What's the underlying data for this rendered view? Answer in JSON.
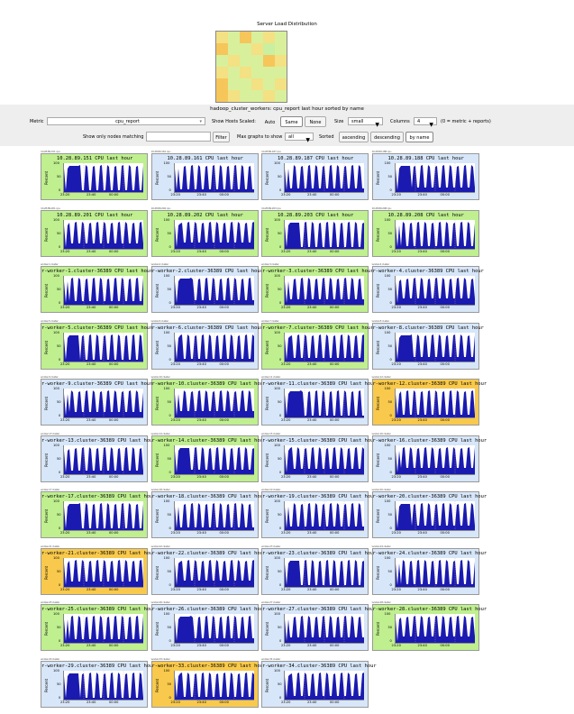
{
  "page": {
    "distribution_title": "Server Load Distribution",
    "heading": "hadoop_cluster_workers: cpu_report last hour sorted by name"
  },
  "colors": {
    "green": "#bfef8f",
    "blue": "#d7e6f8",
    "orange": "#f8c94c",
    "graph_fill": "#1a1ab0"
  },
  "heatmap": [
    "#f3e183",
    "#d8f09c",
    "#f6c65a",
    "#d8f09c",
    "#f3e183",
    "#d8f09c",
    "#f6c65a",
    "#d8f09c",
    "#d8f09c",
    "#f3e183",
    "#c8f0a0",
    "#d8f09c",
    "#d8f09c",
    "#f3e183",
    "#d8f09c",
    "#d8f09c",
    "#f6c65a",
    "#f3e183",
    "#f3e183",
    "#d8f09c",
    "#f3e183",
    "#d8f09c",
    "#d8f09c",
    "#d8f09c",
    "#f6c65a",
    "#d8f09c",
    "#d8f09c",
    "#f3e183",
    "#d8f09c",
    "#f3e183",
    "#f6c65a",
    "#f3e183",
    "#d8f09c",
    "#d8f09c",
    "#f3e183",
    "#d8f09c"
  ],
  "controls": {
    "metric_label": "Metric",
    "metric_value": "cpu_report",
    "show_hosts_label": "Show Hosts Scaled:",
    "scale_auto": "Auto",
    "scale_same": "Same",
    "scale_none": "None",
    "size_label": "Size",
    "size_value": "small",
    "columns_label": "Columns",
    "columns_value": "4",
    "columns_hint": "(0 = metric + reports)",
    "filter_label": "Show only nodes matching",
    "filter_value": "",
    "filter_button": "Filter",
    "max_graphs_label": "Max graphs to show",
    "max_graphs_value": "all",
    "sorted_label": "Sorted",
    "sort_asc": "ascending",
    "sort_desc": "descending",
    "sort_name": "by name"
  },
  "graph_labels": {
    "y_label": "Percent",
    "y_ticks": [
      "100",
      "50",
      "0"
    ],
    "x_ticks": [
      "23:20",
      "23:40",
      "00:00"
    ]
  },
  "nodes": [
    {
      "title": "10.28.89.151 CPU last hour",
      "color": "green",
      "caption": "10.28.89.151 cpu"
    },
    {
      "title": "10.28.89.161 CPU last hour",
      "color": "blue",
      "caption": "10.28.89.161 cpu"
    },
    {
      "title": "10.28.89.187 CPU last hour",
      "color": "blue",
      "caption": "10.28.89.187 cpu"
    },
    {
      "title": "10.28.89.188 CPU last hour",
      "color": "blue",
      "caption": "10.28.89.188 cpu"
    },
    {
      "title": "10.28.89.201 CPU last hour",
      "color": "green",
      "caption": "10.28.89.201 cpu"
    },
    {
      "title": "10.28.89.202 CPU last hour",
      "color": "green",
      "caption": "10.28.89.202 cpu"
    },
    {
      "title": "10.28.89.203 CPU last hour",
      "color": "green",
      "caption": "10.28.89.203 cpu"
    },
    {
      "title": "10.28.89.208 CPU last hour",
      "color": "green",
      "caption": "10.28.89.208 cpu"
    },
    {
      "title": "r-worker-1.cluster-36389 CPU last hour",
      "color": "green",
      "caption": "worker-1 cluster"
    },
    {
      "title": "r-worker-2.cluster-36389 CPU last hour",
      "color": "blue",
      "caption": "worker-2 cluster"
    },
    {
      "title": "r-worker-3.cluster-36389 CPU last hour",
      "color": "green",
      "caption": "worker-3 cluster"
    },
    {
      "title": "r-worker-4.cluster-36389 CPU last hour",
      "color": "blue",
      "caption": "worker-4 cluster"
    },
    {
      "title": "r-worker-5.cluster-36389 CPU last hour",
      "color": "green",
      "caption": "worker-5 cluster"
    },
    {
      "title": "r-worker-6.cluster-36389 CPU last hour",
      "color": "blue",
      "caption": "worker-6 cluster"
    },
    {
      "title": "r-worker-7.cluster-36389 CPU last hour",
      "color": "green",
      "caption": "worker-7 cluster"
    },
    {
      "title": "r-worker-8.cluster-36389 CPU last hour",
      "color": "blue",
      "caption": "worker-8 cluster"
    },
    {
      "title": "r-worker-9.cluster-36389 CPU last hour",
      "color": "blue",
      "caption": "worker-9 cluster"
    },
    {
      "title": "r-worker-10.cluster-36389 CPU last hour",
      "color": "green",
      "caption": "worker-10 cluster"
    },
    {
      "title": "r-worker-11.cluster-36389 CPU last hour",
      "color": "blue",
      "caption": "worker-11 cluster"
    },
    {
      "title": "r-worker-12.cluster-36389 CPU last hour",
      "color": "orange",
      "caption": "worker-12 cluster"
    },
    {
      "title": "r-worker-13.cluster-36389 CPU last hour",
      "color": "blue",
      "caption": "worker-13 cluster"
    },
    {
      "title": "r-worker-14.cluster-36389 CPU last hour",
      "color": "green",
      "caption": "worker-14 cluster"
    },
    {
      "title": "r-worker-15.cluster-36389 CPU last hour",
      "color": "blue",
      "caption": "worker-15 cluster"
    },
    {
      "title": "r-worker-16.cluster-36389 CPU last hour",
      "color": "blue",
      "caption": "worker-16 cluster"
    },
    {
      "title": "r-worker-17.cluster-36389 CPU last hour",
      "color": "green",
      "caption": "worker-17 cluster"
    },
    {
      "title": "r-worker-18.cluster-36389 CPU last hour",
      "color": "blue",
      "caption": "worker-18 cluster"
    },
    {
      "title": "r-worker-19.cluster-36389 CPU last hour",
      "color": "blue",
      "caption": "worker-19 cluster"
    },
    {
      "title": "r-worker-20.cluster-36389 CPU last hour",
      "color": "blue",
      "caption": "worker-20 cluster"
    },
    {
      "title": "r-worker-21.cluster-36389 CPU last hour",
      "color": "orange",
      "caption": "worker-21 cluster"
    },
    {
      "title": "r-worker-22.cluster-36389 CPU last hour",
      "color": "blue",
      "caption": "worker-22 cluster"
    },
    {
      "title": "r-worker-23.cluster-36389 CPU last hour",
      "color": "blue",
      "caption": "worker-23 cluster"
    },
    {
      "title": "r-worker-24.cluster-36389 CPU last hour",
      "color": "blue",
      "caption": "worker-24 cluster"
    },
    {
      "title": "r-worker-25.cluster-36389 CPU last hour",
      "color": "green",
      "caption": "worker-25 cluster"
    },
    {
      "title": "r-worker-26.cluster-36389 CPU last hour",
      "color": "blue",
      "caption": "worker-26 cluster"
    },
    {
      "title": "r-worker-27.cluster-36389 CPU last hour",
      "color": "blue",
      "caption": "worker-27 cluster"
    },
    {
      "title": "r-worker-28.cluster-36389 CPU last hour",
      "color": "green",
      "caption": "worker-28 cluster"
    },
    {
      "title": "r-worker-29.cluster-36389 CPU last hour",
      "color": "blue",
      "caption": "worker-29 cluster"
    },
    {
      "title": "r-worker-33.cluster-36389 CPU last hour",
      "color": "orange",
      "caption": "worker-33 cluster"
    },
    {
      "title": "r-worker-34.cluster-36389 CPU last hour",
      "color": "blue",
      "caption": "worker-34 cluster"
    }
  ]
}
